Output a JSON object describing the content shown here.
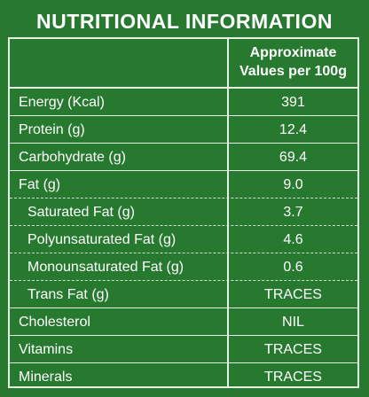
{
  "header": {
    "title": "NUTRITIONAL INFORMATION"
  },
  "table": {
    "column_header": [
      "Approximate",
      "Values per 100g"
    ],
    "rows": [
      [
        "Energy (Kcal)",
        "391"
      ],
      [
        "Protein (g)",
        "12.4"
      ],
      [
        "Carbohydrate (g)",
        "69.4"
      ],
      [
        "Fat (g)",
        "9.0"
      ],
      [
        "Saturated Fat (g)",
        "3.7"
      ],
      [
        "Polyunsaturated Fat (g)",
        "4.6"
      ],
      [
        "Monounsaturated Fat (g)",
        "0.6"
      ],
      [
        "Trans Fat (g)",
        "TRACES"
      ],
      [
        "Cholesterol",
        "NIL"
      ],
      [
        "Vitamins",
        "TRACES"
      ],
      [
        "Minerals",
        "TRACES"
      ]
    ]
  }
}
